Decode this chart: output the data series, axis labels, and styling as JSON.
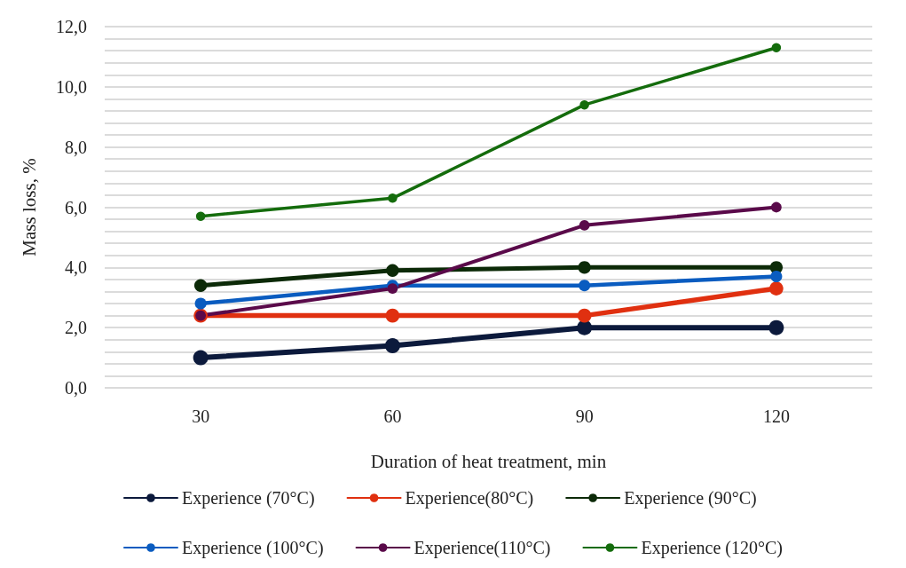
{
  "chart_data": {
    "type": "line",
    "xlabel": "Duration of heat treatment, min",
    "ylabel": "Mass loss, %",
    "categories": [
      "30",
      "60",
      "90",
      "120"
    ],
    "ylim": [
      0,
      12
    ],
    "yticks": [
      {
        "value": 0,
        "label": "0,0"
      },
      {
        "value": 0.4,
        "label": null
      },
      {
        "value": 0.8,
        "label": null
      },
      {
        "value": 1.2,
        "label": null
      },
      {
        "value": 1.6,
        "label": null
      },
      {
        "value": 2,
        "label": "2,0"
      },
      {
        "value": 2.4,
        "label": null
      },
      {
        "value": 2.8,
        "label": null
      },
      {
        "value": 3.2,
        "label": null
      },
      {
        "value": 3.6,
        "label": null
      },
      {
        "value": 4,
        "label": "4,0"
      },
      {
        "value": 4.4,
        "label": null
      },
      {
        "value": 4.8,
        "label": null
      },
      {
        "value": 5.2,
        "label": null
      },
      {
        "value": 5.6,
        "label": null
      },
      {
        "value": 6,
        "label": "6,0"
      },
      {
        "value": 6.4,
        "label": null
      },
      {
        "value": 6.8,
        "label": null
      },
      {
        "value": 7.2,
        "label": null
      },
      {
        "value": 7.6,
        "label": null
      },
      {
        "value": 8,
        "label": "8,0"
      },
      {
        "value": 8.4,
        "label": null
      },
      {
        "value": 8.8,
        "label": null
      },
      {
        "value": 9.2,
        "label": null
      },
      {
        "value": 9.6,
        "label": null
      },
      {
        "value": 10,
        "label": "10,0"
      },
      {
        "value": 10.4,
        "label": null
      },
      {
        "value": 10.8,
        "label": null
      },
      {
        "value": 11.2,
        "label": null
      },
      {
        "value": 11.6,
        "label": null
      },
      {
        "value": 12,
        "label": "12,0"
      }
    ],
    "grid": "y",
    "legend": "bottom",
    "marker": "circle",
    "line_style": "solid",
    "series": [
      {
        "name": "Experience (70°C)",
        "color": "#0c1a3c",
        "values": [
          1.0,
          1.4,
          2.0,
          2.0
        ]
      },
      {
        "name": "Experience(80°C)",
        "color": "#e03010",
        "values": [
          2.4,
          2.4,
          2.4,
          3.3
        ]
      },
      {
        "name": "Experience (90°C)",
        "color": "#0c2a08",
        "values": [
          3.4,
          3.9,
          4.0,
          4.0
        ]
      },
      {
        "name": "Experience (100°C)",
        "color": "#0a5cc0",
        "values": [
          2.8,
          3.4,
          3.4,
          3.7
        ]
      },
      {
        "name": "Experience(110°C)",
        "color": "#5a0a4a",
        "values": [
          2.4,
          3.3,
          5.4,
          6.0
        ]
      },
      {
        "name": "Experience (120°C)",
        "color": "#146c0c",
        "values": [
          5.7,
          6.3,
          9.4,
          11.3
        ]
      }
    ]
  }
}
